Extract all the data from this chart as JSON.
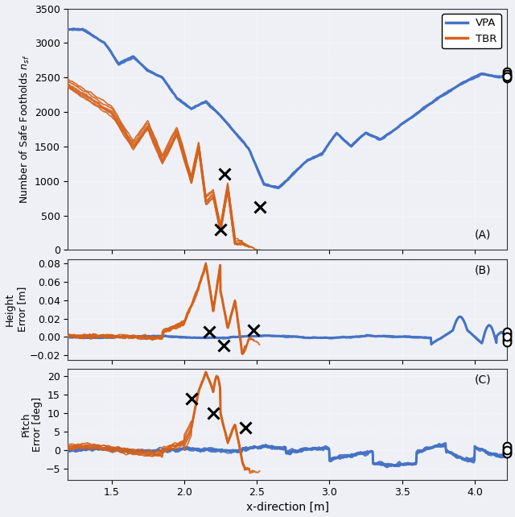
{
  "xlabel": "x-direction [m]",
  "ylabel_A": "Number of Safe Footholds $n_{sf}$",
  "ylabel_B": "Height\nError [m]",
  "ylabel_C": "Pitch\nError [deg]",
  "label_A": "(A)",
  "label_B": "(B)",
  "label_C": "(C)",
  "xlim": [
    1.2,
    4.22
  ],
  "ylim_A": [
    0,
    3500
  ],
  "ylim_B": [
    -0.025,
    0.085
  ],
  "ylim_C": [
    -8,
    22
  ],
  "vpa_color": "#4472C4",
  "tbr_color": "#D4611A",
  "background_color": "#EEF0F5",
  "grid_color": "#FFFFFF",
  "x_ticks": [
    1.5,
    2.0,
    2.5,
    3.0,
    3.5,
    4.0
  ],
  "y_ticks_A": [
    0,
    500,
    1000,
    1500,
    2000,
    2500,
    3000,
    3500
  ],
  "y_ticks_B": [
    -0.02,
    0.0,
    0.02,
    0.04,
    0.06,
    0.08
  ],
  "y_ticks_C": [
    -5,
    0,
    5,
    10,
    15,
    20
  ],
  "n_vpa_trials": 5,
  "n_tbr_trials": 5
}
